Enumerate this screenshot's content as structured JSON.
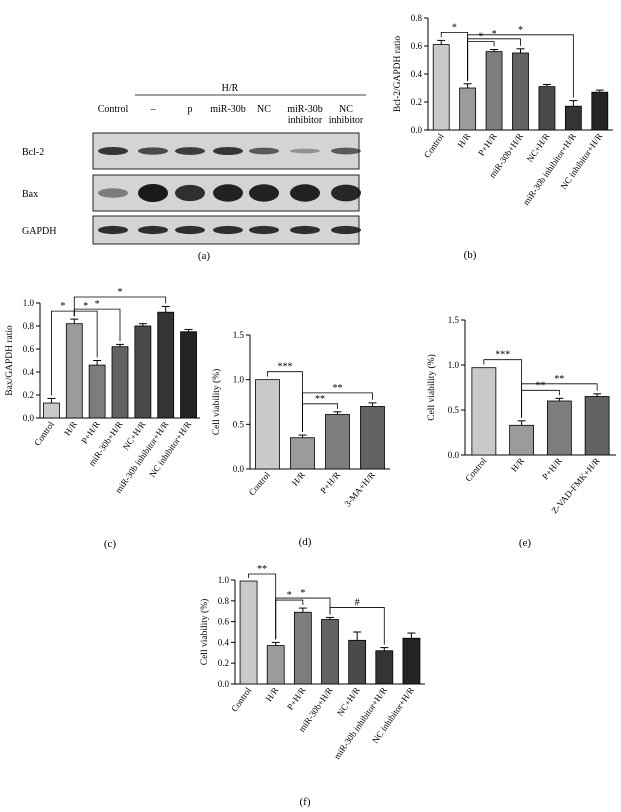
{
  "colors": {
    "bar_fills": [
      "#c9c9c9",
      "#9b9b9b",
      "#7d7d7d",
      "#626262",
      "#4a4a4a",
      "#343434",
      "#242424"
    ],
    "blot_bg": "#d4d4d4",
    "band": "#1a1a1a"
  },
  "panel_a": {
    "label": "(a)",
    "group_label": "H/R",
    "lane_labels": [
      "Control",
      "–",
      "p",
      "miR-30b",
      "NC",
      "miR-30b inhibitor",
      "NC inhibitor"
    ],
    "rows": [
      {
        "label": "Bcl-2",
        "intensity": [
          0.8,
          0.65,
          0.75,
          0.8,
          0.55,
          0.15,
          0.55
        ]
      },
      {
        "label": "Bax",
        "intensity": [
          0.3,
          1.0,
          0.85,
          0.95,
          0.95,
          0.95,
          0.9
        ]
      },
      {
        "label": "GAPDH",
        "intensity": [
          0.85,
          0.85,
          0.85,
          0.85,
          0.85,
          0.85,
          0.85
        ]
      }
    ]
  },
  "chart_data": [
    {
      "id": "b",
      "type": "bar",
      "label": "(b)",
      "ylabel": "Bcl-2/GAPDH ratio",
      "ylim": [
        0,
        0.8
      ],
      "yticks": [
        0.0,
        0.2,
        0.4,
        0.6,
        0.8
      ],
      "categories": [
        "Control",
        "H/R",
        "P+H/R",
        "miR-30b+H/R",
        "NC+H/R",
        "miR-30b inhibitor+H/R",
        "NC inhibitor+H/R"
      ],
      "values": [
        0.61,
        0.3,
        0.56,
        0.55,
        0.31,
        0.17,
        0.27
      ],
      "errors": [
        0.03,
        0.03,
        0.015,
        0.03,
        0.015,
        0.04,
        0.015
      ],
      "significance": [
        {
          "from": 0,
          "to": 1,
          "label": "*"
        },
        {
          "from": 1,
          "to": 2,
          "label": "*"
        },
        {
          "from": 1,
          "to": 3,
          "label": "*"
        },
        {
          "from": 1,
          "to": 5,
          "label": "*"
        }
      ]
    },
    {
      "id": "c",
      "type": "bar",
      "label": "(c)",
      "ylabel": "Bax/GAPDH ratio",
      "ylim": [
        0,
        1.0
      ],
      "yticks": [
        0.0,
        0.2,
        0.4,
        0.6,
        0.8,
        1.0
      ],
      "categories": [
        "Control",
        "H/R",
        "P+H/R",
        "miR-30b+H/R",
        "NC+H/R",
        "miR-30b inhibitor+H/R",
        "NC inhibitor+H/R"
      ],
      "values": [
        0.13,
        0.82,
        0.46,
        0.62,
        0.8,
        0.92,
        0.75
      ],
      "errors": [
        0.04,
        0.04,
        0.04,
        0.02,
        0.02,
        0.05,
        0.02
      ],
      "significance": [
        {
          "from": 0,
          "to": 1,
          "label": "*"
        },
        {
          "from": 1,
          "to": 2,
          "label": "*"
        },
        {
          "from": 1,
          "to": 3,
          "label": "*"
        },
        {
          "from": 1,
          "to": 5,
          "label": "*"
        }
      ]
    },
    {
      "id": "d",
      "type": "bar",
      "label": "(d)",
      "ylabel": "Cell viability (%)",
      "ylim": [
        0,
        1.5
      ],
      "yticks": [
        0.0,
        0.5,
        1.0,
        1.5
      ],
      "categories": [
        "Control",
        "H/R",
        "P+H/R",
        "3-MA+H/R"
      ],
      "values": [
        1.0,
        0.35,
        0.61,
        0.7
      ],
      "errors": [
        0,
        0.03,
        0.03,
        0.04
      ],
      "significance": [
        {
          "from": 0,
          "to": 1,
          "label": "***"
        },
        {
          "from": 1,
          "to": 2,
          "label": "**"
        },
        {
          "from": 1,
          "to": 3,
          "label": "**"
        }
      ]
    },
    {
      "id": "e",
      "type": "bar",
      "label": "(e)",
      "ylabel": "Cell viability (%)",
      "ylim": [
        0,
        1.5
      ],
      "yticks": [
        0.0,
        0.5,
        1.0,
        1.5
      ],
      "categories": [
        "Control",
        "H/R",
        "P+H/R",
        "Z-VAD-FMK+H/R"
      ],
      "values": [
        0.97,
        0.33,
        0.6,
        0.65
      ],
      "errors": [
        0,
        0.05,
        0.03,
        0.03
      ],
      "significance": [
        {
          "from": 0,
          "to": 1,
          "label": "***"
        },
        {
          "from": 1,
          "to": 2,
          "label": "**"
        },
        {
          "from": 1,
          "to": 3,
          "label": "**"
        }
      ]
    },
    {
      "id": "f",
      "type": "bar",
      "label": "(f)",
      "ylabel": "Cell viability (%)",
      "ylim": [
        0,
        1.0
      ],
      "yticks": [
        0.0,
        0.2,
        0.4,
        0.6,
        0.8,
        1.0
      ],
      "categories": [
        "Control",
        "H/R",
        "P+H/R",
        "miR-30b+H/R",
        "NC+H/R",
        "miR-30b inhibitor+H/R",
        "NC inhibitor+H/R"
      ],
      "values": [
        0.99,
        0.37,
        0.69,
        0.62,
        0.42,
        0.32,
        0.44
      ],
      "errors": [
        0,
        0.03,
        0.04,
        0.02,
        0.08,
        0.03,
        0.05
      ],
      "significance": [
        {
          "from": 0,
          "to": 1,
          "label": "**"
        },
        {
          "from": 1,
          "to": 2,
          "label": "*"
        },
        {
          "from": 1,
          "to": 3,
          "label": "*"
        },
        {
          "from": 3,
          "to": 5,
          "label": "#"
        }
      ]
    }
  ]
}
